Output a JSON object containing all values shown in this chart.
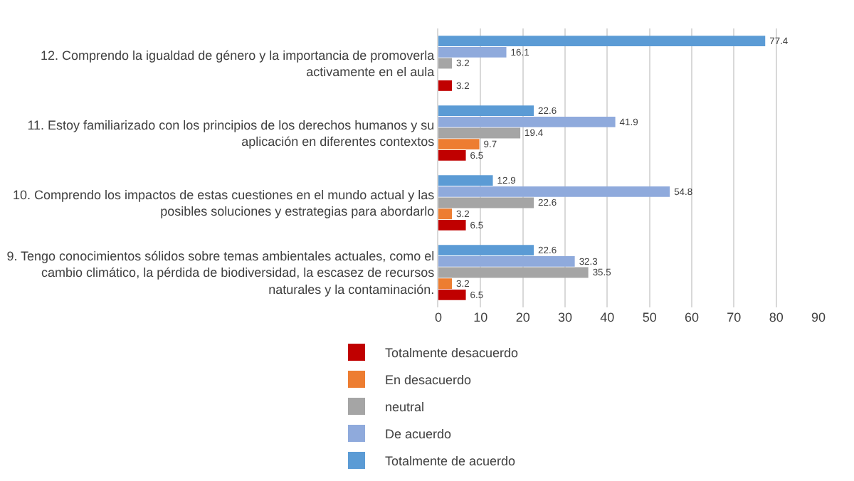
{
  "chart_data": {
    "type": "bar",
    "orientation": "horizontal",
    "categories": [
      "12. Comprendo la igualdad de género y la importancia de promoverla activamente en el aula",
      "11. Estoy familiarizado con los principios de los derechos humanos y su aplicación en diferentes contextos",
      "10. Comprendo los impactos de estas cuestiones en el mundo actual y las posibles soluciones y estrategias para abordarlo",
      "9. Tengo conocimientos sólidos sobre temas ambientales actuales, como el cambio climático, la pérdida de biodiversidad, la escasez de recursos naturales y la contaminación."
    ],
    "series": [
      {
        "name": "Totalmente desacuerdo",
        "color": "#c00000",
        "values": [
          3.2,
          6.5,
          6.5,
          6.5
        ]
      },
      {
        "name": "En desacuerdo",
        "color": "#ed7d31",
        "values": [
          null,
          9.7,
          3.2,
          3.2
        ]
      },
      {
        "name": "neutral",
        "color": "#a5a5a5",
        "values": [
          3.2,
          19.4,
          22.6,
          35.5
        ]
      },
      {
        "name": "De acuerdo",
        "color": "#8faadc",
        "values": [
          16.1,
          41.9,
          54.8,
          32.3
        ]
      },
      {
        "name": "Totalmente de acuerdo",
        "color": "#5b9bd5",
        "values": [
          77.4,
          22.6,
          12.9,
          22.6
        ]
      }
    ],
    "xlim": [
      0,
      90
    ],
    "xticks": [
      0,
      10,
      20,
      30,
      40,
      50,
      60,
      70,
      80,
      90
    ],
    "grid": "x",
    "data_labels": true,
    "legend": "bottom"
  }
}
